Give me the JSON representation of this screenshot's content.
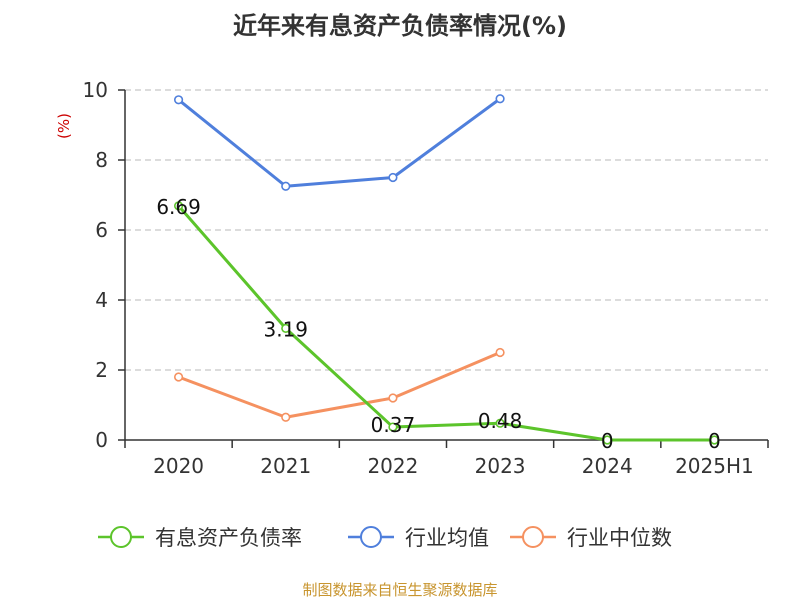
{
  "chart_data": {
    "type": "line",
    "title": "近年来有息资产负债率情况(%)",
    "ylabel": "(%)",
    "ylim": [
      0,
      10
    ],
    "yticks": [
      0,
      2,
      4,
      6,
      8,
      10
    ],
    "grid": true,
    "legend_position": "bottom",
    "categories": [
      "2020",
      "2021",
      "2022",
      "2023",
      "2024",
      "2025H1"
    ],
    "series": [
      {
        "name": "有息资产负债率",
        "color": "#5cc42b",
        "values": [
          6.69,
          3.19,
          0.37,
          0.48,
          0,
          0
        ],
        "labels": [
          "6.69",
          "3.19",
          "0.37",
          "0.48",
          "0",
          "0"
        ]
      },
      {
        "name": "行业均值",
        "color": "#4f7fdc",
        "values": [
          9.72,
          7.25,
          7.5,
          9.75,
          null,
          null
        ]
      },
      {
        "name": "行业中位数",
        "color": "#f59160",
        "values": [
          1.8,
          0.65,
          1.2,
          2.5,
          null,
          null
        ]
      }
    ],
    "source": "制图数据来自恒生聚源数据库"
  }
}
